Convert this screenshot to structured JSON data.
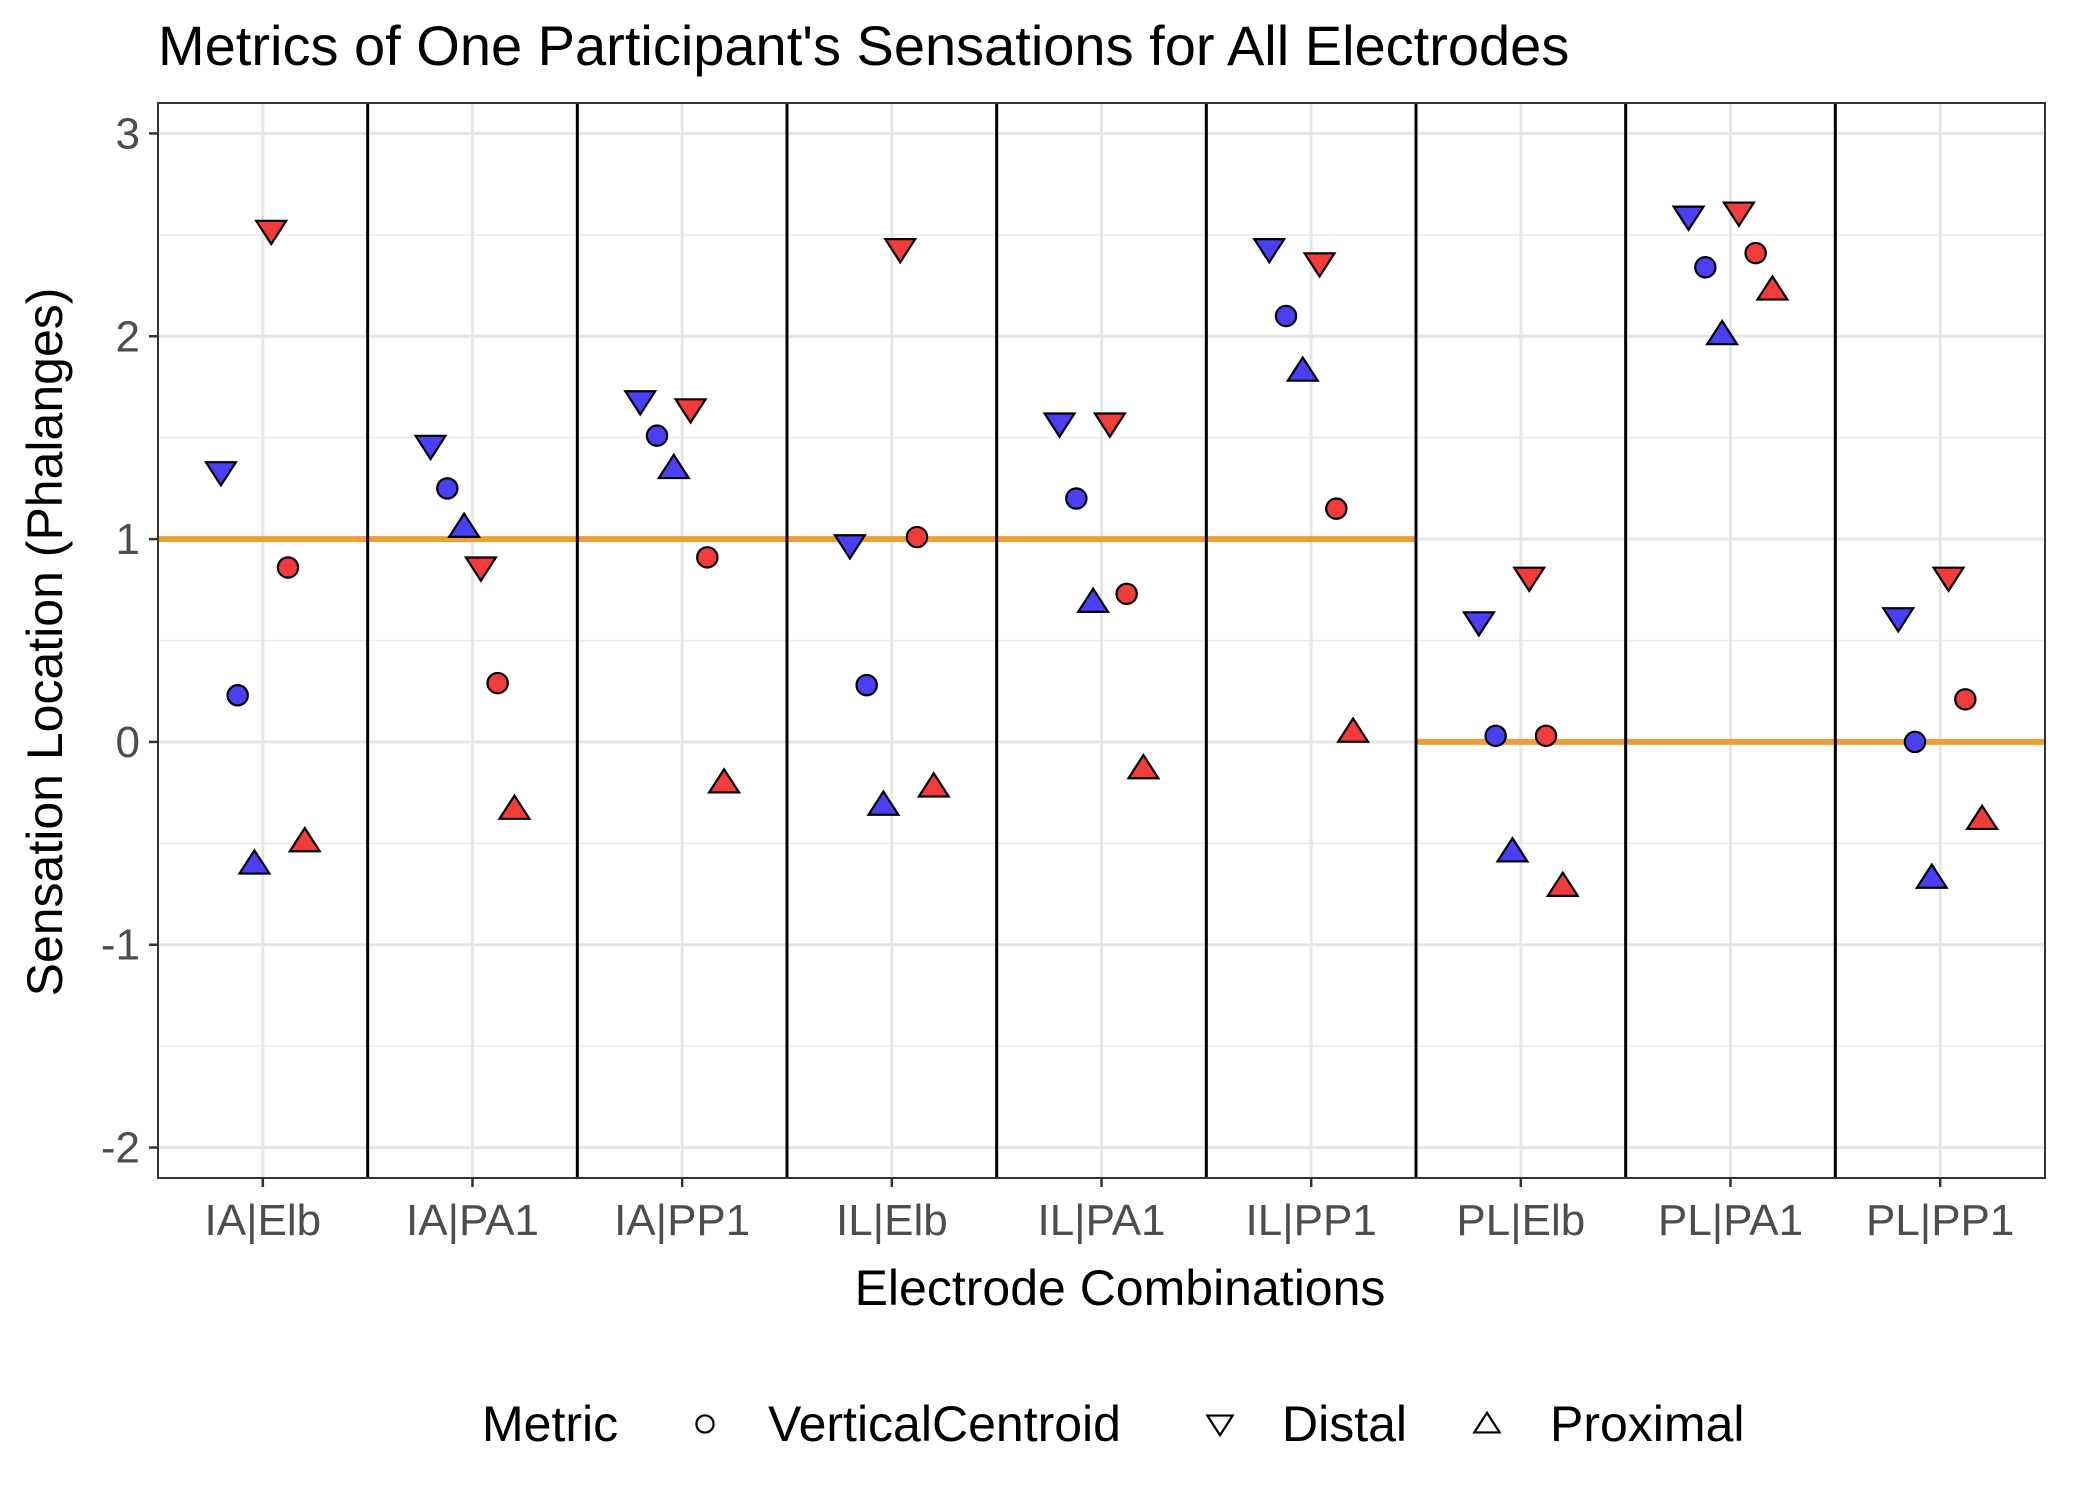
{
  "chart_data": {
    "type": "scatter",
    "title": "Metrics of One Participant's Sensations for All Electrodes",
    "xlabel": "Electrode Combinations",
    "ylabel": "Sensation Location (Phalanges)",
    "categories": [
      "IA|Elb",
      "IA|PA1",
      "IA|PP1",
      "IL|Elb",
      "IL|PA1",
      "IL|PP1",
      "PL|Elb",
      "PL|PA1",
      "PL|PP1"
    ],
    "ylim": [
      -2.15,
      3.15
    ],
    "yticks": [
      3,
      2,
      1,
      0,
      -1,
      -2
    ],
    "ytick_labels": [
      "3",
      "2",
      "1",
      "0",
      "-1",
      "-2"
    ],
    "grid": true,
    "facet_separators": true,
    "legend": {
      "title": "Metric",
      "position": "bottom",
      "items": [
        {
          "label": "VerticalCentroid",
          "shape": "circle"
        },
        {
          "label": "Distal",
          "shape": "triangle-down"
        },
        {
          "label": "Proximal",
          "shape": "triangle-up"
        }
      ]
    },
    "colors": {
      "blue": "#4a3ff5",
      "red": "#f23b3b",
      "reference": "#eb9f36"
    },
    "reference_lines": [
      {
        "category": "IA|Elb",
        "y": 1
      },
      {
        "category": "IA|PA1",
        "y": 1
      },
      {
        "category": "IA|PP1",
        "y": 1
      },
      {
        "category": "IL|Elb",
        "y": 1
      },
      {
        "category": "IL|PA1",
        "y": 1
      },
      {
        "category": "IL|PP1",
        "y": 1
      },
      {
        "category": "PL|Elb",
        "y": 0
      },
      {
        "category": "PL|PA1",
        "y": 0
      },
      {
        "category": "PL|PP1",
        "y": 0
      }
    ],
    "series": [
      {
        "shape": "triangle-down",
        "color": "blue",
        "offset": -0.2,
        "values": [
          1.33,
          1.46,
          1.68,
          0.97,
          1.57,
          2.43,
          0.59,
          2.59,
          0.61
        ]
      },
      {
        "shape": "circle",
        "color": "blue",
        "offset": -0.12,
        "values": [
          0.23,
          1.25,
          1.51,
          0.28,
          1.2,
          2.1,
          0.03,
          2.34,
          0.0
        ]
      },
      {
        "shape": "triangle-up",
        "color": "blue",
        "offset": -0.04,
        "values": [
          -0.6,
          1.06,
          1.35,
          -0.31,
          0.69,
          1.83,
          -0.54,
          2.01,
          -0.67
        ]
      },
      {
        "shape": "triangle-down",
        "color": "red",
        "offset": 0.04,
        "values": [
          2.52,
          0.86,
          1.64,
          2.43,
          1.57,
          2.36,
          0.81,
          2.61,
          0.81
        ]
      },
      {
        "shape": "circle",
        "color": "red",
        "offset": 0.12,
        "values": [
          0.86,
          0.29,
          0.91,
          1.01,
          0.73,
          1.15,
          0.03,
          2.41,
          0.21
        ]
      },
      {
        "shape": "triangle-up",
        "color": "red",
        "offset": 0.2,
        "values": [
          -0.49,
          -0.33,
          -0.2,
          -0.22,
          -0.13,
          0.05,
          -0.71,
          2.23,
          -0.38
        ]
      }
    ]
  }
}
